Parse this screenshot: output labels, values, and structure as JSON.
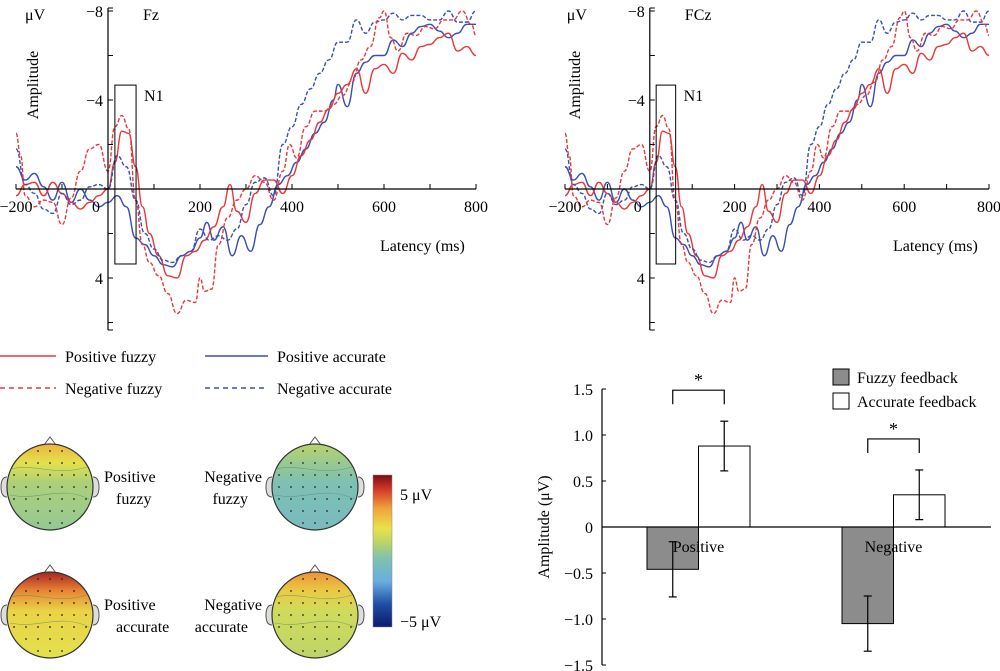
{
  "chart_data": [
    {
      "id": "erp_fz",
      "type": "line",
      "title": "Fz",
      "xlabel": "Latency (ms)",
      "ylabel": "Amplitude",
      "yunit": "μV",
      "xlim": [
        -200,
        800
      ],
      "ylim": [
        6.3,
        -8
      ],
      "y_inverted": true,
      "xticks": [
        -200,
        0,
        200,
        400,
        600,
        800
      ],
      "xticks_minor": [
        -100,
        100,
        300,
        500,
        700
      ],
      "yticks": [
        -8,
        -4,
        4
      ],
      "yticks_minor": [
        -6,
        -2,
        2,
        6
      ],
      "ytick_labels": [
        "−8",
        "−4",
        "4"
      ],
      "xtick_labels": [
        "−200",
        "0",
        "200",
        "400",
        "600",
        "800"
      ],
      "annotation": {
        "label": "N1",
        "x_range": [
          15,
          61
        ],
        "y_range": [
          -4.67,
          3.37
        ]
      },
      "series": [
        {
          "name": "Positive fuzzy",
          "color": "#e8383a",
          "dash": false,
          "x": [
            -200,
            -180,
            -160,
            -140,
            -120,
            -100,
            -80,
            -60,
            -40,
            -20,
            0,
            15,
            30,
            45,
            60,
            75,
            90,
            110,
            130,
            150,
            170,
            190,
            210,
            230,
            250,
            265,
            280,
            300,
            320,
            340,
            360,
            380,
            400,
            420,
            440,
            460,
            480,
            500,
            520,
            540,
            560,
            580,
            600,
            620,
            640,
            660,
            680,
            700,
            720,
            740,
            760,
            780,
            800
          ],
          "y": [
            0.3,
            -0.2,
            -0.3,
            0.3,
            -0.3,
            0.2,
            0.6,
            0.9,
            0.6,
            0.3,
            0,
            -1.2,
            -2.6,
            -2.5,
            -1.0,
            0.8,
            2.0,
            3.0,
            3.9,
            4.0,
            3.0,
            2.8,
            2.3,
            1.7,
            0.8,
            -0.2,
            1.0,
            1.5,
            0.2,
            -0.4,
            -0.4,
            0.2,
            -0.6,
            -1.5,
            -2.2,
            -3.0,
            -3.6,
            -4.3,
            -4.7,
            -5.4,
            -4.3,
            -5.4,
            -5.6,
            -5.2,
            -6.1,
            -5.8,
            -6.4,
            -6.5,
            -6.8,
            -7.0,
            -6.2,
            -6.4,
            -6.0
          ]
        },
        {
          "name": "Negative fuzzy",
          "color": "#e8383a",
          "dash": true,
          "x": [
            -200,
            -190,
            -180,
            -160,
            -140,
            -120,
            -100,
            -80,
            -60,
            -40,
            -20,
            0,
            15,
            30,
            45,
            60,
            75,
            90,
            110,
            130,
            150,
            170,
            190,
            200,
            210,
            225,
            240,
            260,
            280,
            300,
            320,
            340,
            360,
            380,
            395,
            410,
            430,
            450,
            470,
            490,
            510,
            530,
            550,
            570,
            590,
            600,
            615,
            630,
            650,
            670,
            690,
            710,
            730,
            750,
            770,
            790,
            800
          ],
          "y": [
            -2.5,
            -1.5,
            0.3,
            0.8,
            0.5,
            0.6,
            1.6,
            0.4,
            -0.8,
            -1.8,
            -2.0,
            -0.8,
            -2.8,
            -3.3,
            -2.7,
            0.5,
            2.5,
            3.3,
            3.9,
            4.7,
            5.6,
            5.0,
            5.1,
            4.0,
            4.6,
            4.5,
            2.5,
            1.3,
            0.5,
            0,
            -0.6,
            -0.3,
            0.5,
            -0.8,
            -2.0,
            -1.4,
            -2.8,
            -3.5,
            -3.5,
            -3.8,
            -4.2,
            -4.8,
            -5.8,
            -6.4,
            -7.7,
            -8.0,
            -6.8,
            -6.2,
            -7.0,
            -6.9,
            -7.3,
            -7.2,
            -7.6,
            -7.6,
            -8.0,
            -7.4,
            -6.9
          ]
        },
        {
          "name": "Positive accurate",
          "color": "#3a4fb0",
          "dash": false,
          "x": [
            -200,
            -180,
            -160,
            -140,
            -120,
            -100,
            -80,
            -60,
            -40,
            -20,
            0,
            20,
            40,
            60,
            80,
            100,
            120,
            140,
            160,
            180,
            200,
            215,
            230,
            250,
            270,
            290,
            310,
            330,
            350,
            370,
            390,
            410,
            430,
            450,
            470,
            490,
            500,
            520,
            540,
            560,
            580,
            600,
            620,
            640,
            660,
            680,
            700,
            720,
            740,
            760,
            780,
            800
          ],
          "y": [
            -1.0,
            -0.4,
            -0.7,
            -0.1,
            0.5,
            -0.3,
            0.6,
            0,
            0.5,
            0.8,
            0.6,
            0.3,
            0.8,
            2.2,
            2.5,
            3.0,
            3.4,
            3.5,
            3.0,
            2.8,
            2.2,
            1.5,
            2.3,
            1.7,
            3.0,
            2.1,
            2.8,
            1.6,
            0.8,
            -0.2,
            -0.6,
            -1.2,
            -1.8,
            -2.5,
            -3.0,
            -4.0,
            -4.7,
            -3.7,
            -5.2,
            -5.7,
            -6.0,
            -6.0,
            -6.7,
            -6.4,
            -7.0,
            -7.3,
            -7.4,
            -7.1,
            -6.8,
            -7.0,
            -7.4,
            -7.4
          ]
        },
        {
          "name": "Negative accurate",
          "color": "#3a4fb0",
          "dash": true,
          "x": [
            -200,
            -180,
            -160,
            -140,
            -120,
            -100,
            -80,
            -60,
            -40,
            -20,
            0,
            20,
            40,
            60,
            80,
            100,
            120,
            140,
            160,
            180,
            200,
            220,
            240,
            260,
            280,
            300,
            320,
            340,
            360,
            380,
            400,
            420,
            440,
            460,
            480,
            500,
            520,
            540,
            560,
            580,
            600,
            620,
            640,
            660,
            680,
            700,
            720,
            740,
            760,
            780,
            800
          ],
          "y": [
            -1.8,
            -0.2,
            0.2,
            0.9,
            1.1,
            0.2,
            0.7,
            0.5,
            -0.1,
            -0.2,
            0,
            -1.5,
            -1.0,
            0.5,
            2.0,
            2.7,
            3.2,
            3.3,
            3.0,
            2.8,
            1.8,
            2.3,
            2.1,
            2.3,
            1.8,
            0.7,
            -0.3,
            -0.5,
            0.3,
            -2.0,
            -2.8,
            -3.8,
            -4.5,
            -5.2,
            -5.8,
            -6.6,
            -6.6,
            -7.6,
            -7.0,
            -7.5,
            -7.6,
            -7.9,
            -7.6,
            -7.8,
            -7.8,
            -7.6,
            -7.6,
            -8.0,
            -7.5,
            -7.5,
            -8.0
          ]
        }
      ]
    },
    {
      "id": "erp_fcz",
      "type": "line",
      "title": "FCz",
      "xlabel": "Latency (ms)",
      "ylabel": "Amplitude",
      "yunit": "μV",
      "xlim": [
        -200,
        800
      ],
      "ylim": [
        6.3,
        -8
      ],
      "y_inverted": true,
      "xticks": [
        -200,
        0,
        200,
        400,
        600,
        800
      ],
      "xticks_minor": [
        -100,
        100,
        300,
        500,
        700
      ],
      "yticks": [
        -8,
        -4,
        4
      ],
      "yticks_minor": [
        -6,
        -2,
        2,
        6
      ],
      "ytick_labels": [
        "−8",
        "−4",
        "4"
      ],
      "xtick_labels": [
        "−200",
        "0",
        "200",
        "400",
        "600",
        "800"
      ],
      "annotation": {
        "label": "N1",
        "x_range": [
          15,
          61
        ],
        "y_range": [
          -4.67,
          3.37
        ]
      },
      "series_same_as": "erp_fz"
    },
    {
      "id": "topomaps",
      "type": "heatmap",
      "maps": [
        {
          "label_line1": "Positive",
          "label_line2": "fuzzy",
          "frontal_value": 2.5,
          "mean_value": 0.3
        },
        {
          "label_line1": "Negative",
          "label_line2": "fuzzy",
          "frontal_value": 0.5,
          "mean_value": -0.6
        },
        {
          "label_line1": "Positive",
          "label_line2": "accurate",
          "frontal_value": 4.5,
          "mean_value": 1.8
        },
        {
          "label_line1": "Negative",
          "label_line2": "accurate",
          "frontal_value": 3.0,
          "mean_value": 1.0
        }
      ],
      "colorbar": {
        "max_label": "5 μV",
        "min_label": "−5 μV",
        "range": [
          -5,
          5
        ]
      }
    },
    {
      "id": "bar_n1",
      "type": "bar",
      "categories": [
        "Positive",
        "Negative"
      ],
      "ylabel": "Amplitude (μV)",
      "ylim": [
        -1.5,
        1.5
      ],
      "yticks": [
        1.5,
        1.0,
        0.5,
        0,
        -0.5,
        -1.0,
        -1.5
      ],
      "ytick_labels": [
        "1.5",
        "1.0",
        "0.5",
        "0",
        "−0.5",
        "−1.0",
        "−1.5"
      ],
      "series": [
        {
          "name": "Fuzzy feedback",
          "color": "#8c8c8c",
          "values": [
            -0.46,
            -1.05
          ],
          "errors": [
            0.3,
            0.3
          ]
        },
        {
          "name": "Accurate feedback",
          "color": "#ffffff",
          "values": [
            0.88,
            0.35
          ],
          "errors": [
            0.27,
            0.27
          ]
        }
      ],
      "significance": [
        {
          "category": "Positive",
          "label": "*"
        },
        {
          "category": "Negative",
          "label": "*"
        }
      ],
      "legend": "top-right"
    }
  ],
  "legend": [
    {
      "label": "Positive fuzzy",
      "color": "#e8383a",
      "dash": false
    },
    {
      "label": "Positive accurate",
      "color": "#3a4fb0",
      "dash": false
    },
    {
      "label": "Negative fuzzy",
      "color": "#e8383a",
      "dash": true
    },
    {
      "label": "Negative accurate",
      "color": "#3a4fb0",
      "dash": true
    }
  ]
}
